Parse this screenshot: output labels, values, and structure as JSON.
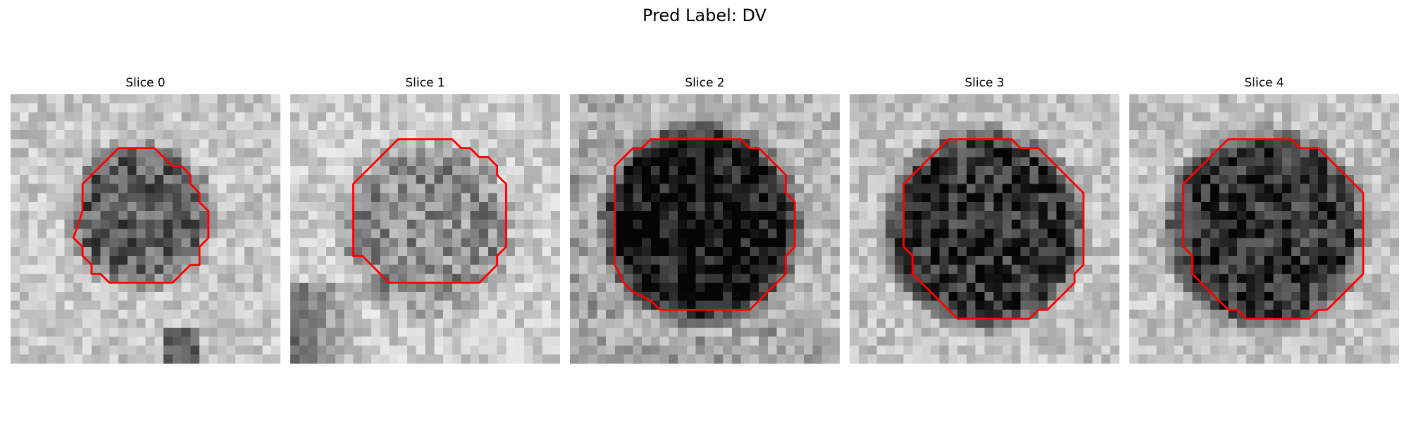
{
  "figure": {
    "title": "Pred Label: DV"
  },
  "panels": [
    {
      "title": "Slice 0",
      "contour_color": "#ff0000"
    },
    {
      "title": "Slice 1",
      "contour_color": "#ff0000"
    },
    {
      "title": "Slice 2",
      "contour_color": "#ff0000"
    },
    {
      "title": "Slice 3",
      "contour_color": "#ff0000"
    },
    {
      "title": "Slice 4",
      "contour_color": "#ff0000"
    }
  ]
}
